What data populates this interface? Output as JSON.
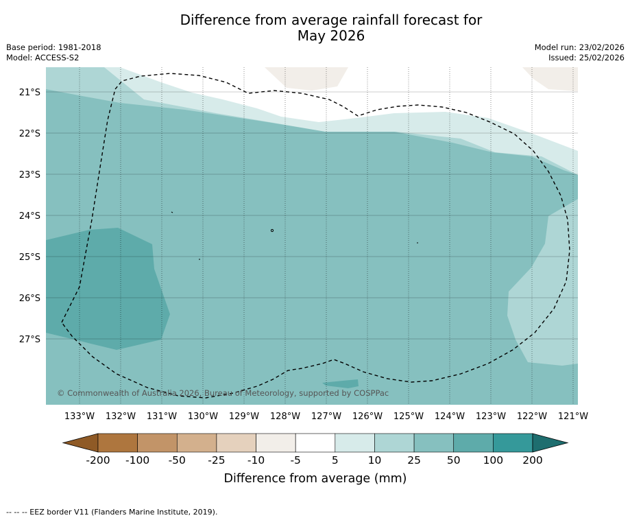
{
  "title_line1": "Difference from average rainfall forecast for",
  "title_line2": "May 2026",
  "base_period": "Base period: 1981-2018",
  "model": "Model: ACCESS-S2",
  "model_run": "Model run: 23/02/2026",
  "issued": "Issued: 25/02/2026",
  "credit": "© Commonwealth of Australia 2026, Bureau of Meteorology, supported by COSPPac",
  "lat_labels": [
    "21°S",
    "22°S",
    "23°S",
    "24°S",
    "25°S",
    "26°S",
    "27°S"
  ],
  "lon_labels": [
    "133°W",
    "132°W",
    "131°W",
    "130°W",
    "129°W",
    "128°W",
    "127°W",
    "126°W",
    "125°W",
    "124°W",
    "123°W",
    "122°W",
    "121°W"
  ],
  "colorbar": {
    "ticks": [
      "-200",
      "-100",
      "-50",
      "-25",
      "-10",
      "-5",
      "5",
      "10",
      "25",
      "50",
      "100",
      "200"
    ],
    "colors": {
      "below_min": "#8f5a26",
      "bins": [
        "#ae763e",
        "#c29468",
        "#d3b08d",
        "#e5d1bd",
        "#f2eee9",
        "#ffffff",
        "#d7ebea",
        "#aed6d5",
        "#86c0bf",
        "#5eabaa",
        "#35999a"
      ],
      "above_max": "#1e6e6f"
    },
    "label": "Difference from average (mm)"
  },
  "legend_text": "--  --  -- EEZ border V11 (Flanders Marine Institute, 2019)."
}
